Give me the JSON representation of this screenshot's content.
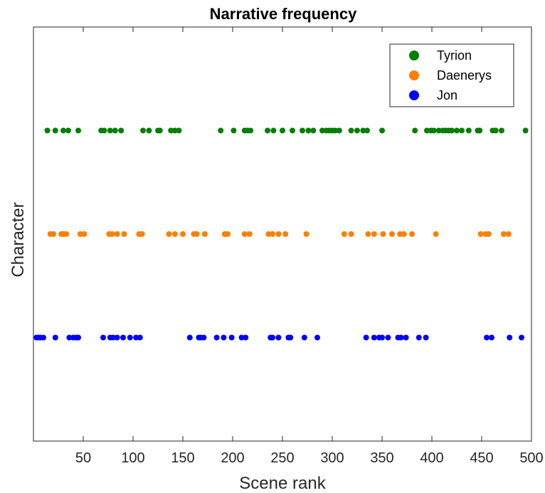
{
  "chart_data": {
    "type": "scatter",
    "title": "Narrative frequency",
    "xlabel": "Scene rank",
    "ylabel": "Character",
    "xlim": [
      0,
      500
    ],
    "ylim": [
      0,
      4
    ],
    "xticks": [
      50,
      100,
      150,
      200,
      250,
      300,
      350,
      400,
      450,
      500
    ],
    "grid": false,
    "legend_position": "top-right",
    "series": [
      {
        "name": "Tyrion",
        "color": "#007f00",
        "y": 3,
        "x": [
          14,
          22,
          30,
          35,
          45,
          68,
          71,
          77,
          82,
          88,
          110,
          116,
          125,
          127,
          138,
          142,
          146,
          188,
          201,
          212,
          215,
          218,
          235,
          241,
          250,
          260,
          270,
          276,
          281,
          290,
          294,
          297,
          300,
          303,
          307,
          319,
          325,
          331,
          335,
          350,
          383,
          395,
          399,
          402,
          407,
          411,
          414,
          417,
          420,
          425,
          430,
          437,
          446,
          448,
          461,
          464,
          470,
          494
        ]
      },
      {
        "name": "Daenerys",
        "color": "#ff7f00",
        "y": 2,
        "x": [
          17,
          20,
          28,
          30,
          33,
          47,
          51,
          76,
          79,
          84,
          91,
          106,
          109,
          136,
          142,
          150,
          161,
          164,
          172,
          192,
          195,
          212,
          217,
          236,
          240,
          246,
          253,
          274,
          312,
          319,
          336,
          342,
          351,
          360,
          368,
          372,
          380,
          404,
          449,
          454,
          457,
          472,
          477
        ]
      },
      {
        "name": "Jon",
        "color": "#0000ff",
        "y": 1,
        "x": [
          3,
          5,
          7,
          10,
          22,
          36,
          40,
          43,
          45,
          70,
          77,
          80,
          84,
          90,
          97,
          103,
          107,
          157,
          166,
          168,
          171,
          184,
          191,
          199,
          209,
          213,
          238,
          240,
          246,
          256,
          258,
          272,
          285,
          334,
          342,
          347,
          350,
          356,
          366,
          369,
          374,
          387,
          394,
          455,
          460,
          478,
          490
        ]
      }
    ]
  }
}
